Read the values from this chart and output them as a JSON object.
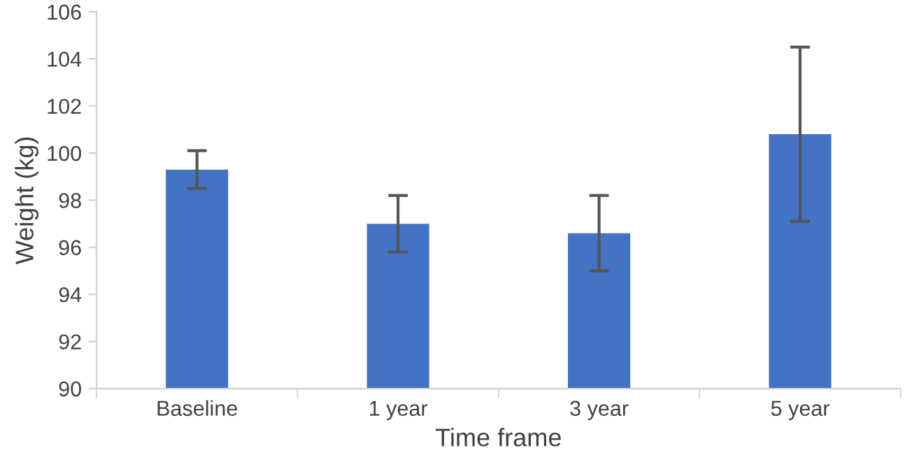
{
  "chart_data": {
    "type": "bar",
    "xlabel": "Time frame",
    "ylabel": "Weight (kg)",
    "categories": [
      "Baseline",
      "1 year",
      "3 year",
      "5 year"
    ],
    "values": [
      99.3,
      97.0,
      96.6,
      100.8
    ],
    "errors": [
      [
        98.5,
        100.1
      ],
      [
        95.8,
        98.2
      ],
      [
        95.0,
        98.2
      ],
      [
        97.1,
        104.5
      ]
    ],
    "color": "#4472c4",
    "ylim": [
      90,
      106
    ],
    "yticks": [
      90,
      92,
      94,
      96,
      98,
      100,
      102,
      104,
      106
    ],
    "grid": false
  }
}
